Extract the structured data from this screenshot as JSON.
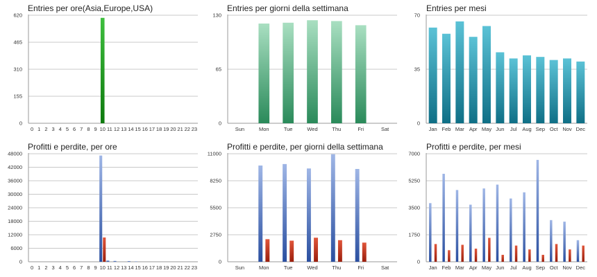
{
  "colors": {
    "gridline": "#c8c8c8",
    "axis": "#9a9a9a",
    "green_light": "#3fbf3f",
    "green_dark": "#0e7a0e",
    "mint_light": "#a9dfc1",
    "mint_dark": "#2a8a5a",
    "teal_light": "#5bc2d6",
    "teal_dark": "#0f6f86",
    "blue_light": "#9fb6e6",
    "blue_dark": "#2a4fa0",
    "red_light": "#e0553a",
    "red_dark": "#9a1e0c"
  },
  "chart_data": [
    {
      "id": "entries-hours",
      "type": "bar",
      "title": "Entries per ore(Asia,Europe,USA)",
      "categories": [
        "0",
        "1",
        "2",
        "3",
        "4",
        "5",
        "6",
        "7",
        "8",
        "9",
        "10",
        "11",
        "12",
        "13",
        "14",
        "15",
        "16",
        "17",
        "18",
        "19",
        "20",
        "21",
        "22",
        "23"
      ],
      "series": [
        {
          "values": [
            0,
            0,
            0,
            0,
            0,
            0,
            0,
            0,
            0,
            0,
            605,
            0,
            0,
            0,
            0,
            0,
            0,
            0,
            0,
            0,
            0,
            0,
            0,
            0
          ],
          "color": "green"
        }
      ],
      "ylim": [
        0,
        620
      ],
      "yticks": [
        "0",
        "155",
        "310",
        "465",
        "620"
      ],
      "grid": true
    },
    {
      "id": "entries-weekdays",
      "type": "bar",
      "title": "Entries per giorni della settimana",
      "categories": [
        "Sun",
        "Mon",
        "Tue",
        "Wed",
        "Thu",
        "Fri",
        "Sat"
      ],
      "series": [
        {
          "values": [
            0,
            120,
            121,
            124,
            123,
            118,
            0
          ],
          "color": "mint"
        }
      ],
      "ylim": [
        0,
        130
      ],
      "yticks": [
        "0",
        "65",
        "130"
      ],
      "grid": true
    },
    {
      "id": "entries-months",
      "type": "bar",
      "title": "Entries per mesi",
      "categories": [
        "Jan",
        "Feb",
        "Mar",
        "Apr",
        "May",
        "Jun",
        "Jul",
        "Aug",
        "Sep",
        "Oct",
        "Nov",
        "Dec"
      ],
      "series": [
        {
          "values": [
            62,
            58,
            66,
            56,
            63,
            46,
            42,
            44,
            43,
            41,
            42,
            40
          ],
          "color": "teal"
        }
      ],
      "ylim": [
        0,
        70
      ],
      "yticks": [
        "0",
        "35",
        "70"
      ],
      "grid": true
    },
    {
      "id": "profits-hours",
      "type": "bar",
      "title": "Profitti e perdite, per ore",
      "categories": [
        "0",
        "1",
        "2",
        "3",
        "4",
        "5",
        "6",
        "7",
        "8",
        "9",
        "10",
        "11",
        "12",
        "13",
        "14",
        "15",
        "16",
        "17",
        "18",
        "19",
        "20",
        "21",
        "22",
        "23"
      ],
      "series": [
        {
          "values": [
            0,
            0,
            0,
            0,
            0,
            0,
            0,
            0,
            0,
            0,
            47200,
            600,
            400,
            0,
            300,
            150,
            0,
            0,
            0,
            0,
            0,
            0,
            0,
            0
          ],
          "color": "blue"
        },
        {
          "values": [
            0,
            0,
            0,
            0,
            0,
            0,
            0,
            0,
            0,
            0,
            10800,
            0,
            0,
            0,
            0,
            0,
            0,
            0,
            0,
            0,
            0,
            0,
            0,
            0
          ],
          "color": "red"
        }
      ],
      "ylim": [
        0,
        48000
      ],
      "yticks": [
        "0",
        "6000",
        "12000",
        "18000",
        "24000",
        "30000",
        "36000",
        "42000",
        "48000"
      ],
      "grid": true
    },
    {
      "id": "profits-weekdays",
      "type": "bar",
      "title": "Profitti e perdite, per giorni della settimana",
      "categories": [
        "Sun",
        "Mon",
        "Tue",
        "Wed",
        "Thu",
        "Fri",
        "Sat"
      ],
      "series": [
        {
          "values": [
            0,
            9800,
            9950,
            9500,
            10950,
            9450,
            0
          ],
          "color": "blue"
        },
        {
          "values": [
            0,
            2300,
            2150,
            2450,
            2200,
            1950,
            0
          ],
          "color": "red"
        }
      ],
      "ylim": [
        0,
        11000
      ],
      "yticks": [
        "0",
        "2750",
        "5500",
        "8250",
        "11000"
      ],
      "grid": true
    },
    {
      "id": "profits-months",
      "type": "bar",
      "title": "Profitti e perdite, per mesi",
      "categories": [
        "Jan",
        "Feb",
        "Mar",
        "Apr",
        "May",
        "Jun",
        "Jul",
        "Aug",
        "Sep",
        "Oct",
        "Nov",
        "Dec"
      ],
      "series": [
        {
          "values": [
            3800,
            5700,
            4650,
            3700,
            4750,
            5000,
            4100,
            4500,
            6600,
            2700,
            2600,
            1400
          ],
          "color": "blue"
        },
        {
          "values": [
            1150,
            750,
            1100,
            850,
            1550,
            450,
            1050,
            800,
            450,
            1150,
            800,
            1050
          ],
          "color": "red"
        }
      ],
      "ylim": [
        0,
        7000
      ],
      "yticks": [
        "0",
        "1750",
        "3500",
        "5250",
        "7000"
      ],
      "grid": true
    }
  ]
}
